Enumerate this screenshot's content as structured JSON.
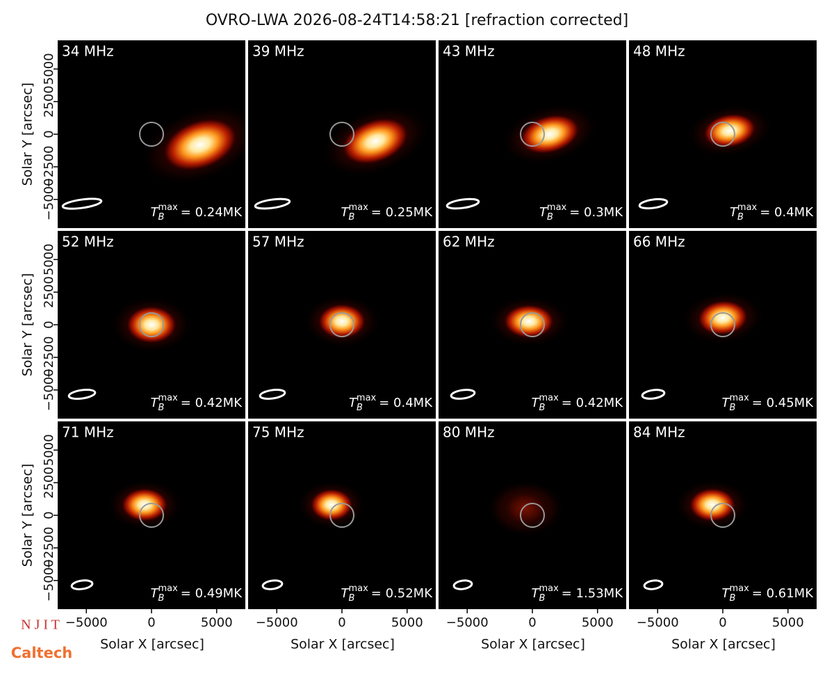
{
  "chart_data": {
    "type": "image_grid",
    "title": "OVRO-LWA 2026-08-24T14:58:21 [refraction corrected]",
    "xlabel": "Solar X [arcsec]",
    "ylabel": "Solar Y [arcsec]",
    "xlim": [
      -7200,
      7200
    ],
    "ylim": [
      -7200,
      7200
    ],
    "xticks": [
      {
        "value": -5000,
        "label": "−5000"
      },
      0,
      5000
    ],
    "yticks": [
      {
        "value": -5000,
        "label": "−5000"
      },
      {
        "value": -2500,
        "label": "−2500"
      },
      0,
      2500,
      5000
    ],
    "tb_symbol": "T",
    "tb_sub": "B",
    "tb_sup": "max",
    "panels": [
      {
        "label": "34 MHz",
        "tb": "= 0.24MK"
      },
      {
        "label": "39 MHz",
        "tb": "= 0.25MK"
      },
      {
        "label": "43 MHz",
        "tb": "= 0.3MK"
      },
      {
        "label": "48 MHz",
        "tb": "= 0.4MK"
      },
      {
        "label": "52 MHz",
        "tb": "= 0.42MK"
      },
      {
        "label": "57 MHz",
        "tb": "= 0.4MK"
      },
      {
        "label": "62 MHz",
        "tb": "= 0.42MK"
      },
      {
        "label": "66 MHz",
        "tb": "= 0.45MK"
      },
      {
        "label": "71 MHz",
        "tb": "= 0.49MK"
      },
      {
        "label": "75 MHz",
        "tb": "= 0.52MK"
      },
      {
        "label": "80 MHz",
        "tb": "= 1.53MK"
      },
      {
        "label": "84 MHz",
        "tb": "= 0.61MK"
      }
    ],
    "logos": [
      "N J I T",
      "Caltech"
    ]
  }
}
